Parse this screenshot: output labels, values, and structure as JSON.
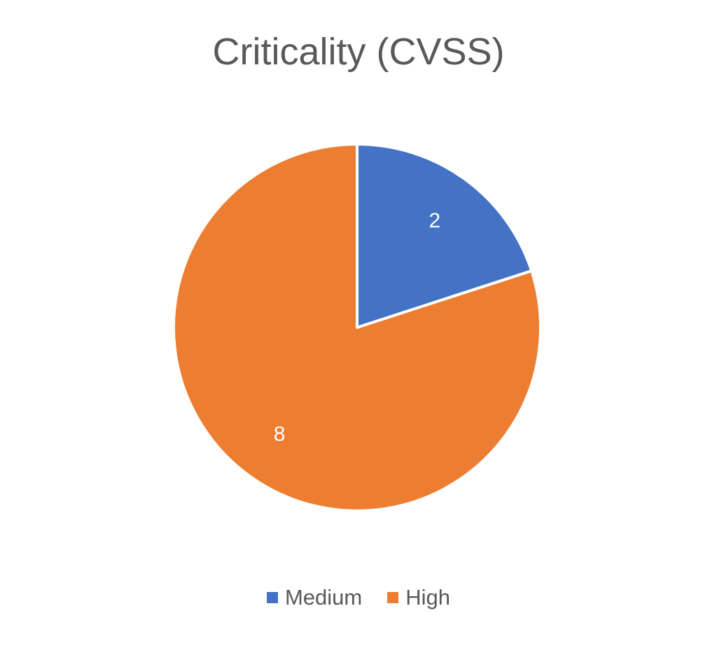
{
  "chart_data": {
    "type": "pie",
    "title": "Criticality (CVSS)",
    "series": [
      {
        "values": [
          2,
          8
        ]
      }
    ],
    "categories": [
      "Medium",
      "High"
    ],
    "colors": [
      "#4472C4",
      "#ED7D31"
    ],
    "data_labels": [
      "2",
      "8"
    ],
    "legend_position": "bottom",
    "start_angle": "12 o'clock, clockwise"
  }
}
